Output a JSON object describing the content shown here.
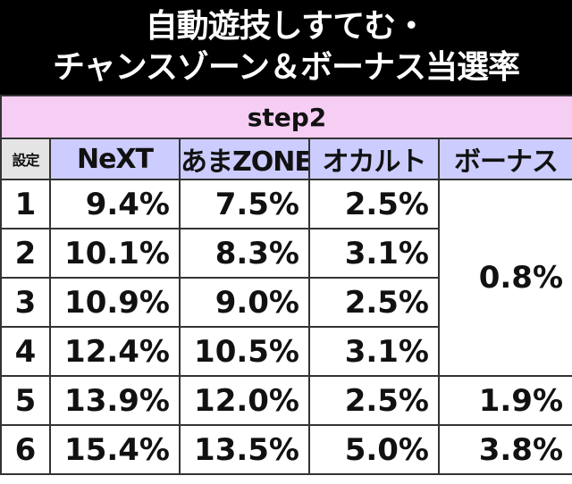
{
  "title": [
    "自動遊技しすてむ・",
    "チャンスゾーン＆ボーナス当選率"
  ],
  "table": {
    "caption": "step2",
    "header": [
      "設定",
      "NeXT",
      "あまZONE",
      "オカルト",
      "ボーナス"
    ],
    "rows": [
      [
        "1",
        "9.4%",
        "7.5%",
        "2.5%",
        "0.8%"
      ],
      [
        "2",
        "10.1%",
        "8.3%",
        "3.1%"
      ],
      [
        "3",
        "10.9%",
        "9.0%",
        "2.5%"
      ],
      [
        "4",
        "12.4%",
        "10.5%",
        "3.1%"
      ],
      [
        "5",
        "13.9%",
        "12.0%",
        "2.5%",
        "1.9%"
      ],
      [
        "6",
        "15.4%",
        "13.5%",
        "5.0%",
        "3.8%"
      ]
    ]
  }
}
